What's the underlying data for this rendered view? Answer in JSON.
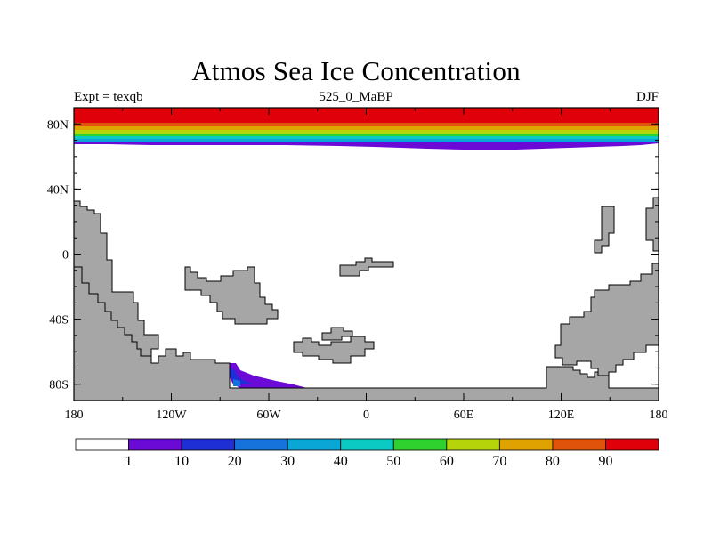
{
  "title": "Atmos Sea Ice Concentration",
  "subtitle_left": "Expt = texqb",
  "subtitle_center": "525_0_MaBP",
  "subtitle_right": "DJF",
  "axes": {
    "y_ticks": [
      {
        "value": 80,
        "label": "80N"
      },
      {
        "value": 40,
        "label": "40N"
      },
      {
        "value": 0,
        "label": "0"
      },
      {
        "value": -40,
        "label": "40S"
      },
      {
        "value": -80,
        "label": "80S"
      }
    ],
    "x_ticks": [
      {
        "value": -180,
        "label": "180"
      },
      {
        "value": -120,
        "label": "120W"
      },
      {
        "value": -60,
        "label": "60W"
      },
      {
        "value": 0,
        "label": "0"
      },
      {
        "value": 60,
        "label": "60E"
      },
      {
        "value": 120,
        "label": "120E"
      },
      {
        "value": 180,
        "label": "180"
      }
    ],
    "lon_range": [
      -180,
      180
    ],
    "lat_range": [
      -90,
      90
    ]
  },
  "legend": {
    "colors": [
      "#ffffff",
      "#6b0ad6",
      "#1f2fd6",
      "#1773dc",
      "#0aa6d6",
      "#0bc9c3",
      "#2ed12e",
      "#b5d40a",
      "#e0a200",
      "#e0530a",
      "#e0000a"
    ],
    "labels": [
      "1",
      "10",
      "20",
      "30",
      "40",
      "50",
      "60",
      "70",
      "80",
      "90"
    ]
  },
  "colors": {
    "land": "#a6a6a6",
    "ocean": "#ffffff",
    "frame": "#000000"
  }
}
